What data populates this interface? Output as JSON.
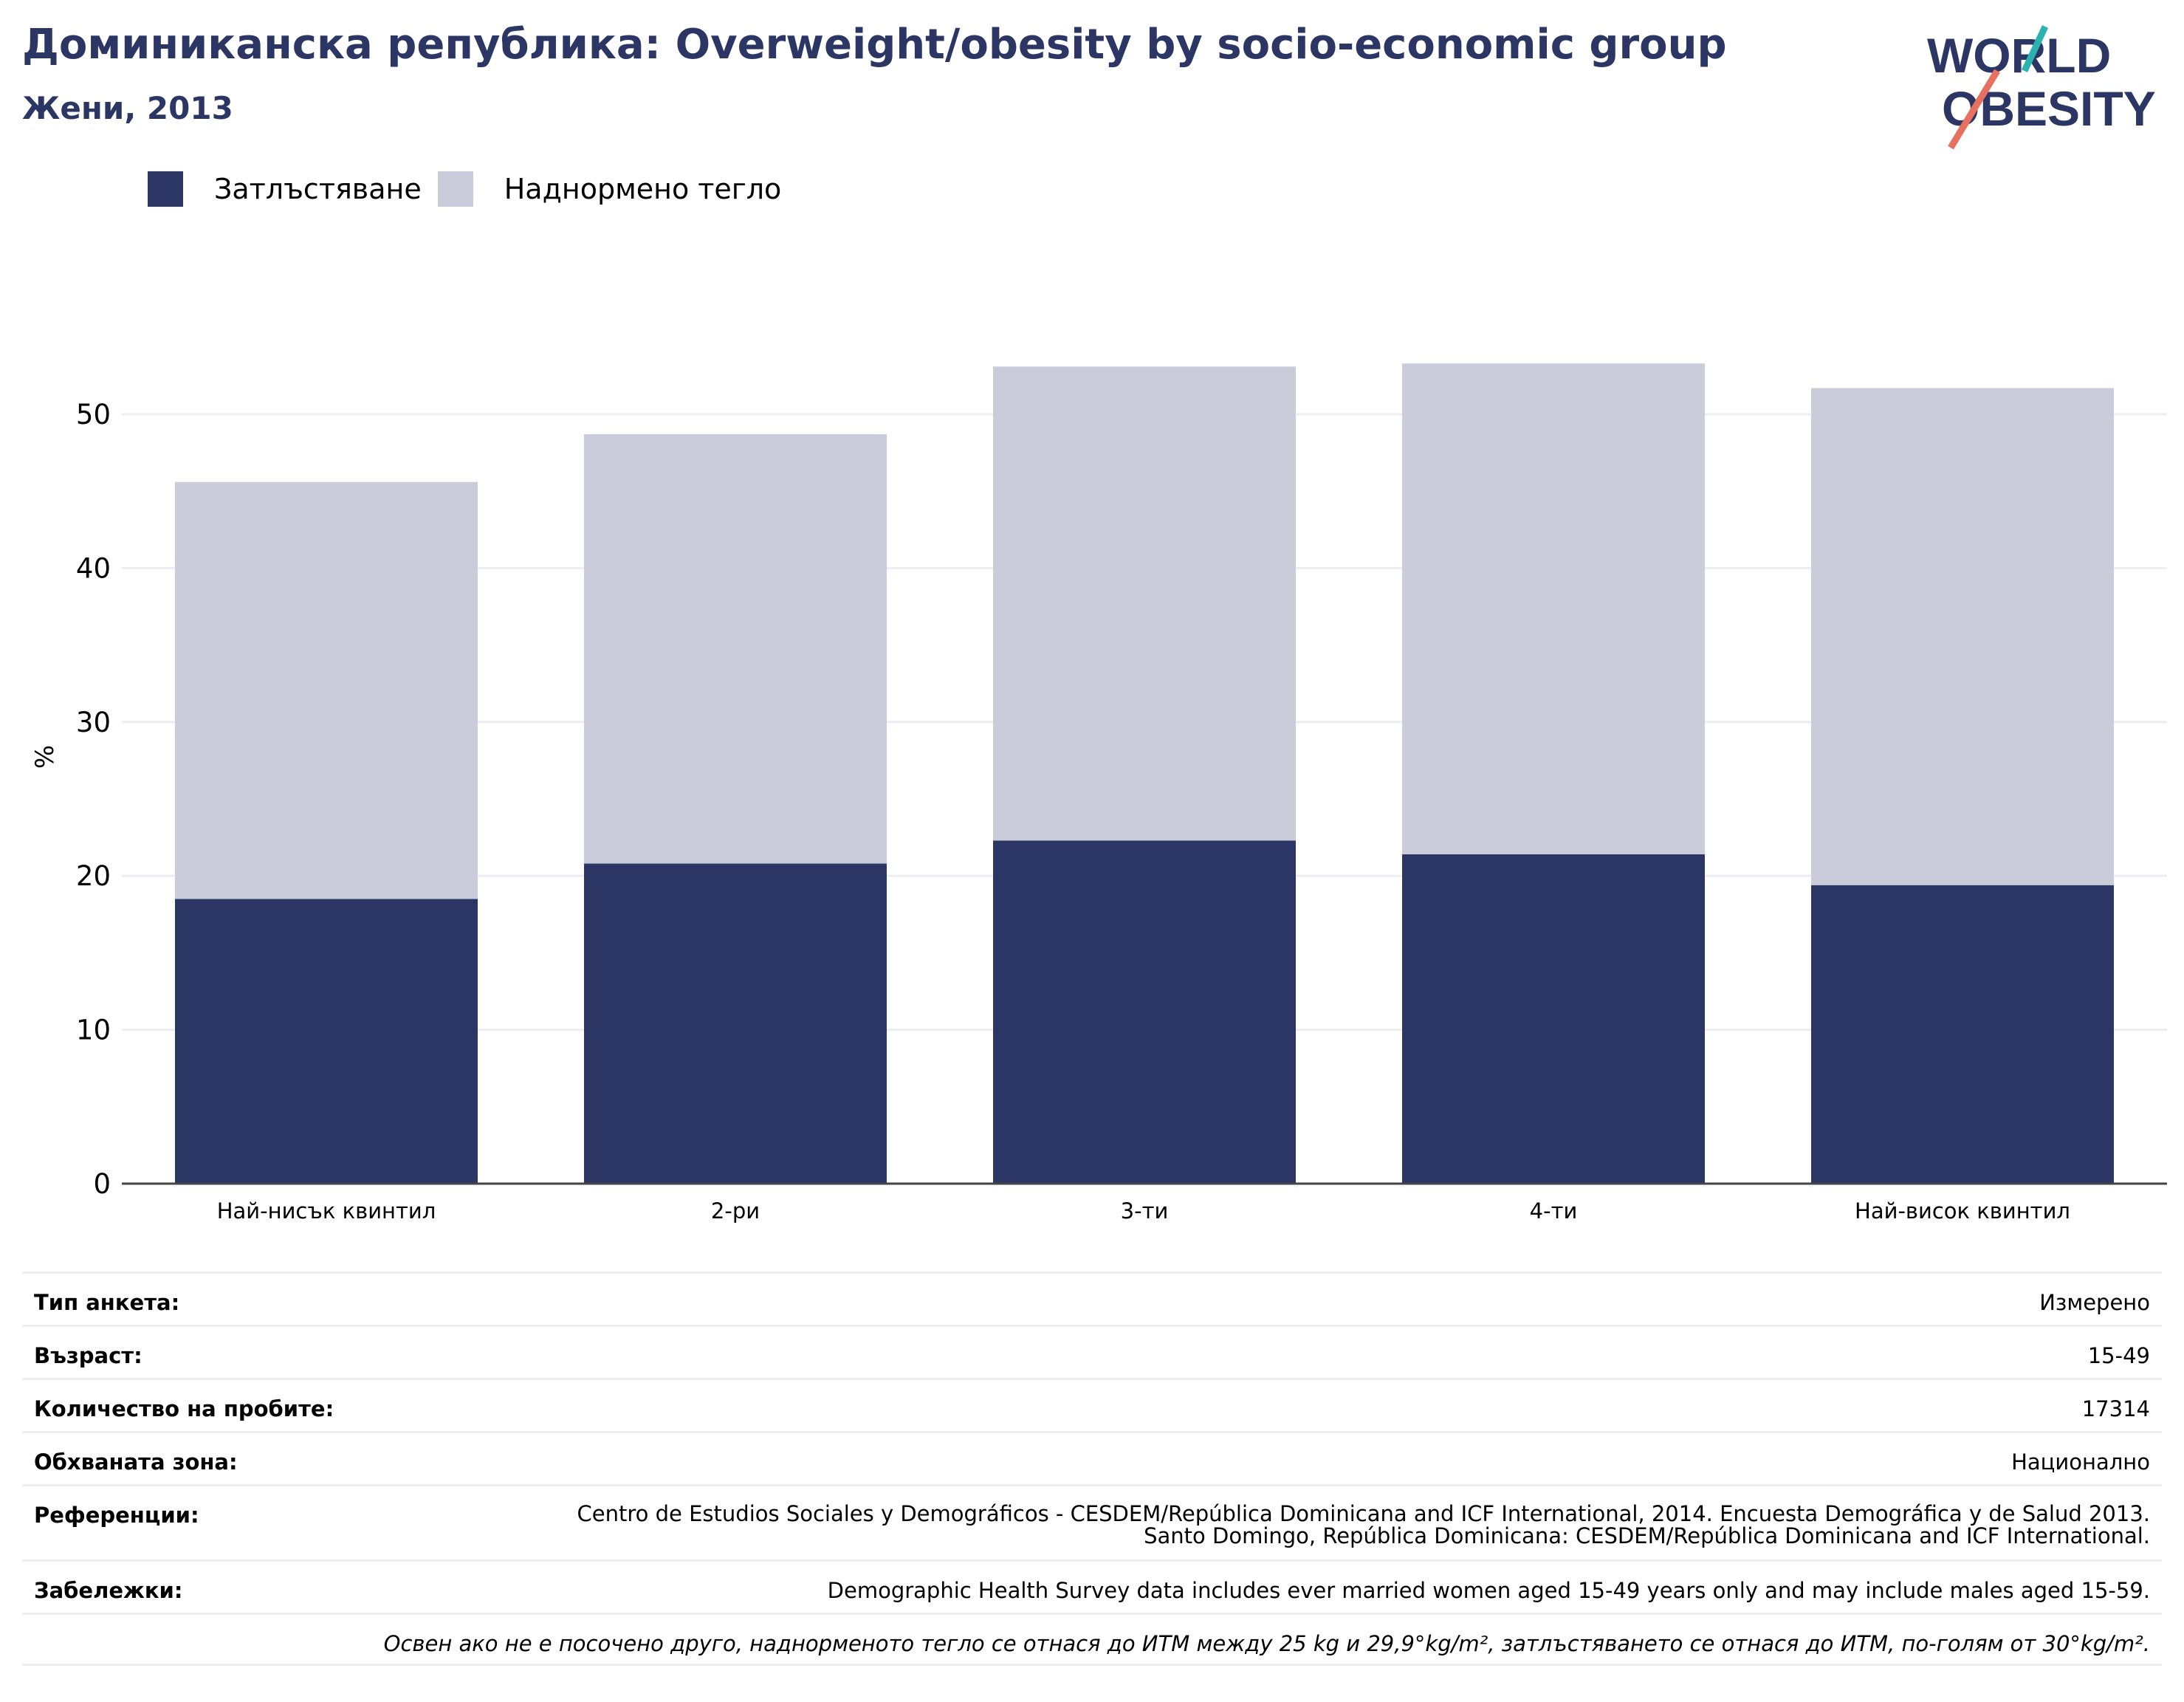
{
  "header": {
    "title": "Доминиканска република: Overweight/obesity by socio-economic group",
    "subtitle": "Жени, 2013"
  },
  "logo": {
    "line1": "WORLD",
    "line2": "OBESITY",
    "name": "world-obesity-logo"
  },
  "colors": {
    "obesity": "#2b3664",
    "overweight": "#cacdd9",
    "text": "#2b3664",
    "grid": "#eceef4"
  },
  "chart_data": {
    "type": "bar",
    "stacked": true,
    "categories": [
      "Най-нисък квинтил",
      "2-ри",
      "3-ти",
      "4-ти",
      "Най-висок квинтил"
    ],
    "series": [
      {
        "name": "Затлъстяване",
        "values": [
          18.5,
          20.8,
          22.3,
          21.4,
          19.4
        ]
      },
      {
        "name": "Наднормено тегло",
        "values": [
          27.1,
          27.9,
          30.8,
          31.9,
          32.3
        ]
      }
    ],
    "ylabel": "%",
    "ylim": [
      0,
      55
    ],
    "yticks": [
      0,
      10,
      20,
      30,
      40,
      50
    ],
    "grid": true,
    "legend": "top-left"
  },
  "info": {
    "survey_type_label": "Тип анкета:",
    "survey_type_value": "Измерено",
    "age_label": "Възраст:",
    "age_value": "15-49",
    "sample_label": "Количество на пробите:",
    "sample_value": "17314",
    "area_label": "Обхваната зона:",
    "area_value": "Национално",
    "references_label": "Референции:",
    "references_value": "Centro de Estudios Sociales y Demográficos - CESDEM/República Dominicana and ICF International, 2014. Encuesta Demográfica y de Salud 2013. Santo Domingo, República Dominicana: CESDEM/República Dominicana and ICF International.",
    "notes_label": "Забележки:",
    "notes_value": "Demographic Health Survey data includes ever married women aged 15-49 years only and may include males aged 15-59.",
    "definition": "Освен ако не е посочено друго, наднорменото тегло се отнася до ИТМ между 25 kg и 29,9°kg/m², затлъстяването се отнася до ИТМ, по-голям от 30°kg/m²."
  }
}
